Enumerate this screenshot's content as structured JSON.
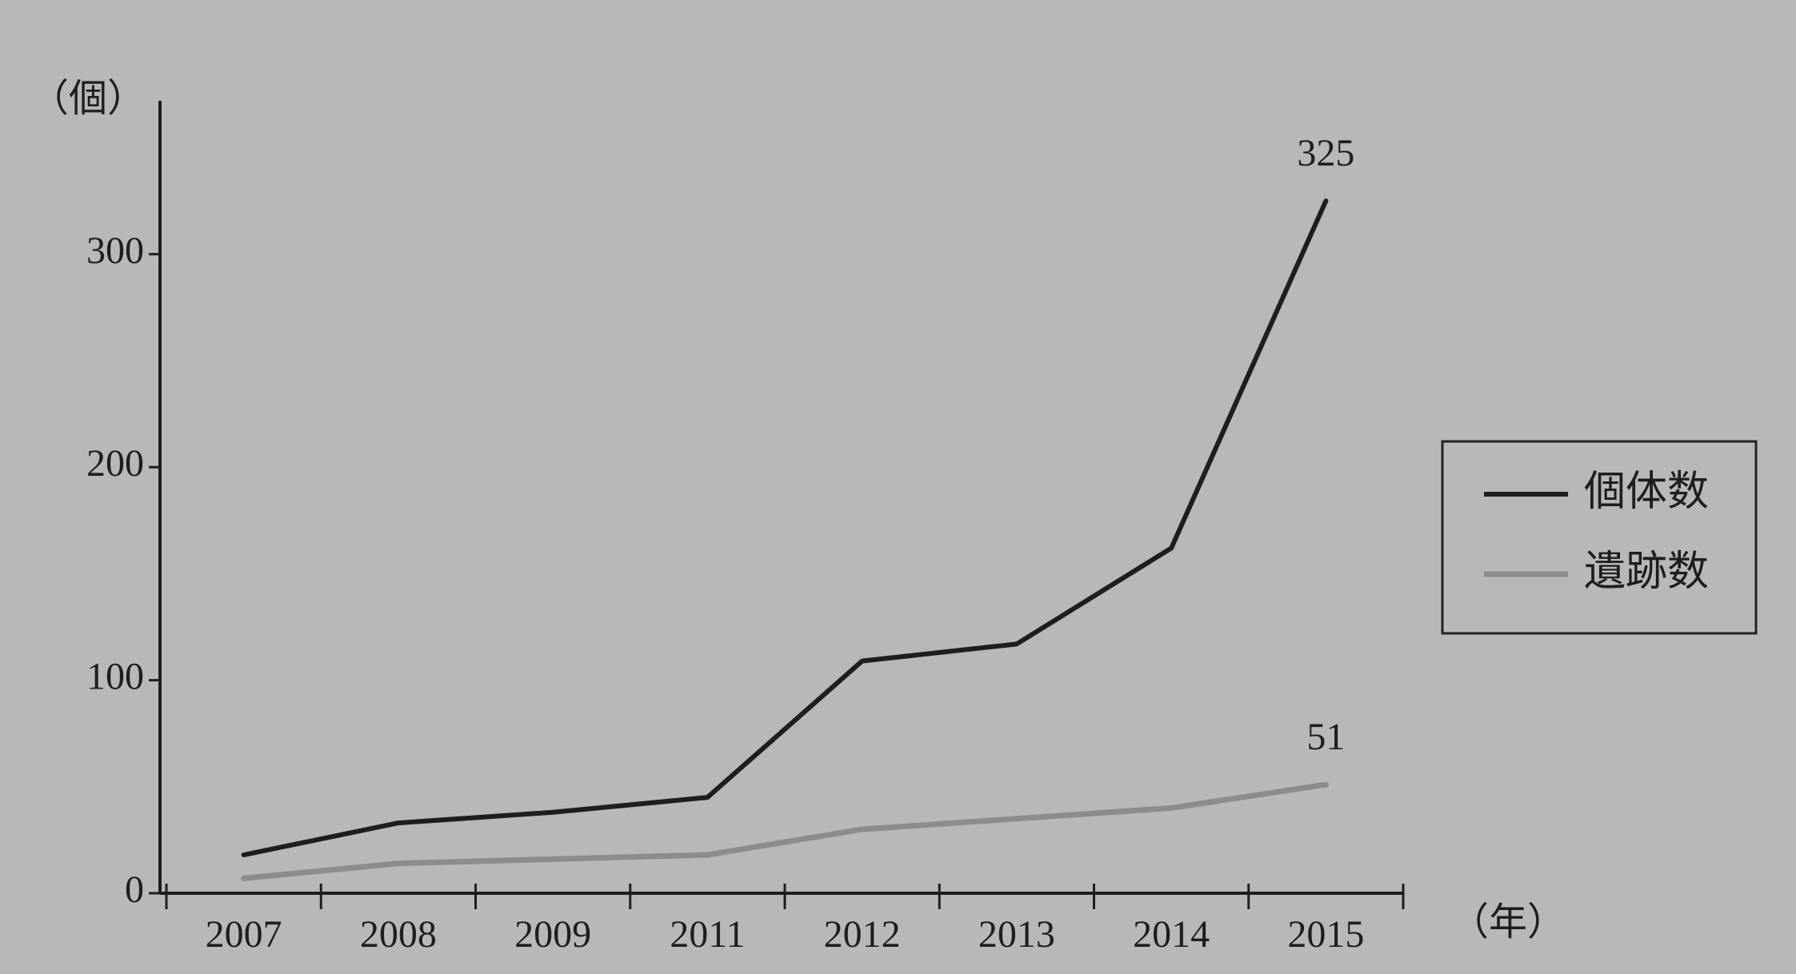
{
  "chart_data": {
    "type": "line",
    "y_label": "（個）",
    "x_label": "（年）",
    "categories": [
      "2007",
      "2008",
      "2009",
      "2011",
      "2012",
      "2013",
      "2014",
      "2015"
    ],
    "series": [
      {
        "name": "個体数",
        "color": "#1e1e1e",
        "values": [
          18,
          33,
          38,
          45,
          109,
          117,
          162,
          325
        ]
      },
      {
        "name": "遺跡数",
        "color": "#8c8c8e",
        "values": [
          7,
          14,
          16,
          18,
          30,
          35,
          40,
          51
        ]
      }
    ],
    "ylim": [
      0,
      372
    ],
    "yticks": [
      0,
      100,
      200,
      300
    ],
    "grid": false,
    "legend": "right"
  }
}
